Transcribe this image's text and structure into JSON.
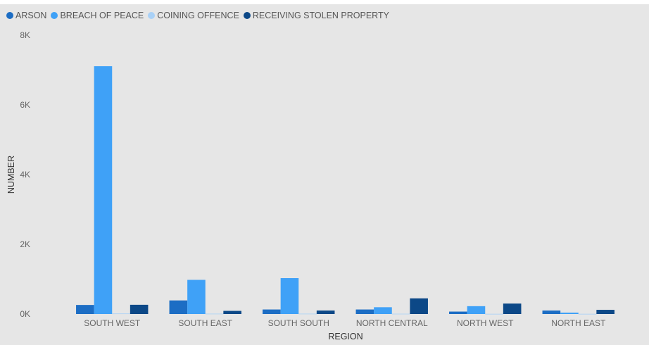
{
  "chart_data": {
    "type": "bar",
    "title": "",
    "xlabel": "REGION",
    "ylabel": "NUMBER",
    "ylim": [
      0,
      8000
    ],
    "yticks": [
      0,
      2000,
      4000,
      6000,
      8000
    ],
    "ytick_labels": [
      "0K",
      "2K",
      "4K",
      "6K",
      "8K"
    ],
    "grid": false,
    "legend_position": "top-left",
    "categories": [
      "SOUTH WEST",
      "SOUTH EAST",
      "SOUTH SOUTH",
      "NORTH CENTRAL",
      "NORTH WEST",
      "NORTH EAST"
    ],
    "series": [
      {
        "name": "ARSON",
        "color": "#1c6dc4",
        "values": [
          260,
          390,
          130,
          130,
          70,
          100
        ]
      },
      {
        "name": "BREACH OF PEACE",
        "color": "#3fa1f7",
        "values": [
          7110,
          980,
          1030,
          195,
          225,
          40
        ]
      },
      {
        "name": "COINING OFFENCE",
        "color": "#a9d1f7",
        "values": [
          15,
          10,
          10,
          8,
          5,
          5
        ]
      },
      {
        "name": "RECEIVING STOLEN PROPERTY",
        "color": "#0c4887",
        "values": [
          265,
          90,
          100,
          450,
          300,
          120
        ]
      }
    ]
  }
}
